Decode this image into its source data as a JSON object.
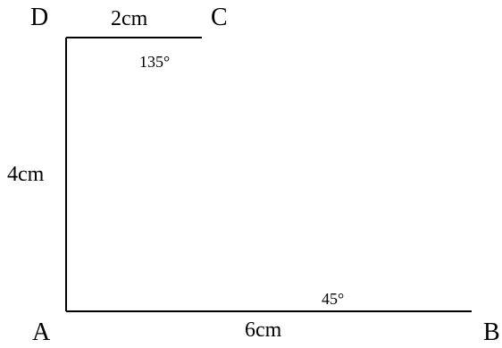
{
  "vertices": {
    "A": "A",
    "B": "B",
    "C": "C",
    "D": "D"
  },
  "lengths": {
    "DC": "2cm",
    "DA": "4cm",
    "AB": "6cm"
  },
  "angles": {
    "C": "135°",
    "B": "45°"
  },
  "colors": {
    "stroke": "#000000",
    "background": "#ffffff"
  }
}
